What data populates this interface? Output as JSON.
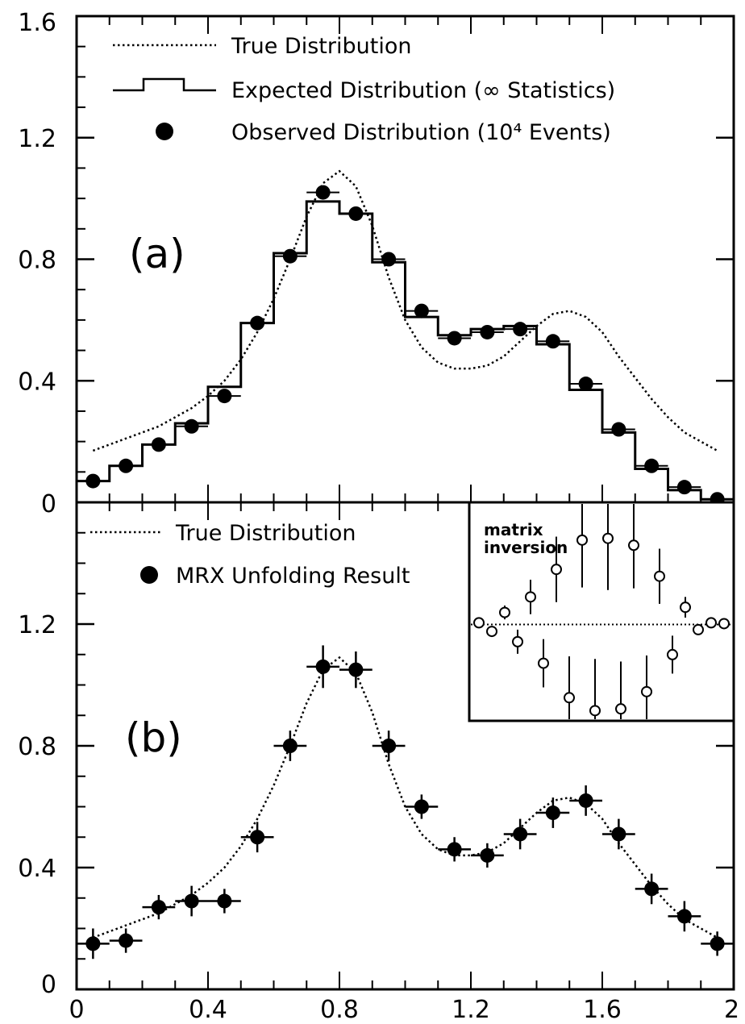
{
  "chart_data": [
    {
      "type": "line",
      "panel_label": "(a)",
      "xlim": [
        0,
        2
      ],
      "ylim": [
        0,
        1.6
      ],
      "y_ticks": [
        "0",
        "0.4",
        "0.8",
        "1.2",
        "1.6"
      ],
      "legend": {
        "placement": "top-left",
        "entries": [
          {
            "label": "True Distribution",
            "marker": "dotted-line"
          },
          {
            "label": "Expected Distribution (∞ Statistics)",
            "marker": "histogram-step"
          },
          {
            "label": "Observed Distribution (10⁴ Events)",
            "marker": "filled-circle"
          }
        ]
      },
      "series": [
        {
          "name": "True Distribution",
          "style": "dotted",
          "x": [
            0.05,
            0.1,
            0.15,
            0.2,
            0.25,
            0.3,
            0.35,
            0.4,
            0.45,
            0.5,
            0.55,
            0.6,
            0.65,
            0.7,
            0.75,
            0.8,
            0.85,
            0.9,
            0.95,
            1.0,
            1.05,
            1.1,
            1.15,
            1.2,
            1.25,
            1.3,
            1.35,
            1.4,
            1.45,
            1.5,
            1.55,
            1.6,
            1.65,
            1.7,
            1.75,
            1.8,
            1.85,
            1.9,
            1.95
          ],
          "y": [
            0.17,
            0.19,
            0.21,
            0.23,
            0.25,
            0.28,
            0.31,
            0.35,
            0.4,
            0.47,
            0.56,
            0.67,
            0.8,
            0.94,
            1.05,
            1.09,
            1.04,
            0.91,
            0.74,
            0.6,
            0.51,
            0.46,
            0.44,
            0.44,
            0.45,
            0.48,
            0.53,
            0.58,
            0.62,
            0.63,
            0.61,
            0.56,
            0.48,
            0.41,
            0.34,
            0.28,
            0.23,
            0.2,
            0.17
          ]
        },
        {
          "name": "Expected Distribution (∞ Statistics)",
          "style": "histogram",
          "bin_edges": [
            0,
            0.1,
            0.2,
            0.3,
            0.4,
            0.5,
            0.6,
            0.7,
            0.8,
            0.9,
            1.0,
            1.1,
            1.2,
            1.3,
            1.4,
            1.5,
            1.6,
            1.7,
            1.8,
            1.9,
            2.0
          ],
          "values": [
            0.07,
            0.12,
            0.19,
            0.26,
            0.38,
            0.59,
            0.82,
            0.99,
            0.95,
            0.79,
            0.61,
            0.55,
            0.57,
            0.58,
            0.52,
            0.37,
            0.23,
            0.11,
            0.04,
            0.01
          ]
        },
        {
          "name": "Observed Distribution (10⁴ Events)",
          "style": "points",
          "x": [
            0.05,
            0.15,
            0.25,
            0.35,
            0.45,
            0.55,
            0.65,
            0.75,
            0.85,
            0.95,
            1.05,
            1.15,
            1.25,
            1.35,
            1.45,
            1.55,
            1.65,
            1.75,
            1.85,
            1.95
          ],
          "y": [
            0.07,
            0.12,
            0.19,
            0.25,
            0.35,
            0.59,
            0.81,
            1.02,
            0.95,
            0.8,
            0.63,
            0.54,
            0.56,
            0.57,
            0.53,
            0.39,
            0.24,
            0.12,
            0.05,
            0.01
          ]
        }
      ]
    },
    {
      "type": "scatter",
      "panel_label": "(b)",
      "xlim": [
        0,
        2
      ],
      "ylim": [
        0,
        1.6
      ],
      "x_ticks": [
        "0",
        "0.4",
        "0.8",
        "1.2",
        "1.6",
        "2"
      ],
      "y_ticks": [
        "0",
        "0.4",
        "0.8",
        "1.2"
      ],
      "legend": {
        "placement": "top-left",
        "entries": [
          {
            "label": "True Distribution",
            "marker": "dotted-line"
          },
          {
            "label": "MRX Unfolding Result",
            "marker": "filled-circle"
          }
        ]
      },
      "series": [
        {
          "name": "True Distribution",
          "style": "dotted",
          "x": [
            0.05,
            0.1,
            0.15,
            0.2,
            0.25,
            0.3,
            0.35,
            0.4,
            0.45,
            0.5,
            0.55,
            0.6,
            0.65,
            0.7,
            0.75,
            0.8,
            0.85,
            0.9,
            0.95,
            1.0,
            1.05,
            1.1,
            1.15,
            1.2,
            1.25,
            1.3,
            1.35,
            1.4,
            1.45,
            1.5,
            1.55,
            1.6,
            1.65,
            1.7,
            1.75,
            1.8,
            1.85,
            1.9,
            1.95
          ],
          "y": [
            0.17,
            0.19,
            0.21,
            0.23,
            0.25,
            0.28,
            0.31,
            0.35,
            0.4,
            0.47,
            0.56,
            0.67,
            0.8,
            0.94,
            1.05,
            1.09,
            1.04,
            0.91,
            0.74,
            0.6,
            0.51,
            0.46,
            0.44,
            0.44,
            0.45,
            0.48,
            0.53,
            0.58,
            0.62,
            0.63,
            0.61,
            0.56,
            0.48,
            0.41,
            0.34,
            0.28,
            0.23,
            0.2,
            0.17
          ]
        },
        {
          "name": "MRX Unfolding Result",
          "style": "points-with-errors",
          "x": [
            0.05,
            0.15,
            0.25,
            0.35,
            0.45,
            0.55,
            0.65,
            0.75,
            0.85,
            0.95,
            1.05,
            1.15,
            1.25,
            1.35,
            1.45,
            1.55,
            1.65,
            1.75,
            1.85,
            1.95
          ],
          "y": [
            0.15,
            0.16,
            0.27,
            0.29,
            0.29,
            0.5,
            0.8,
            1.06,
            1.05,
            0.8,
            0.6,
            0.46,
            0.44,
            0.51,
            0.58,
            0.62,
            0.51,
            0.33,
            0.24,
            0.15
          ],
          "x_err": 0.05,
          "y_err": [
            0.05,
            0.04,
            0.04,
            0.05,
            0.04,
            0.05,
            0.05,
            0.07,
            0.06,
            0.05,
            0.04,
            0.04,
            0.04,
            0.05,
            0.05,
            0.05,
            0.05,
            0.05,
            0.05,
            0.04
          ]
        }
      ],
      "inset": {
        "type": "scatter",
        "title": "matrix inversion",
        "placement": "top-right",
        "baseline": 0,
        "ylim": [
          -1.1,
          1.4
        ],
        "x": [
          1,
          2,
          3,
          4,
          5,
          6,
          7,
          8,
          9,
          10,
          11,
          12,
          13,
          14,
          15,
          16,
          17,
          18,
          19,
          20
        ],
        "y": [
          0.02,
          -0.08,
          0.14,
          -0.2,
          0.32,
          -0.45,
          0.64,
          -0.85,
          0.98,
          -1.0,
          1.0,
          -0.98,
          0.92,
          -0.78,
          0.56,
          -0.35,
          0.2,
          -0.06,
          0.02,
          0.01
        ],
        "y_err": [
          0.02,
          0.05,
          0.08,
          0.14,
          0.2,
          0.28,
          0.38,
          0.48,
          0.55,
          0.6,
          0.6,
          0.55,
          0.5,
          0.42,
          0.32,
          0.22,
          0.12,
          0.06,
          0.02,
          0.01
        ]
      }
    }
  ]
}
